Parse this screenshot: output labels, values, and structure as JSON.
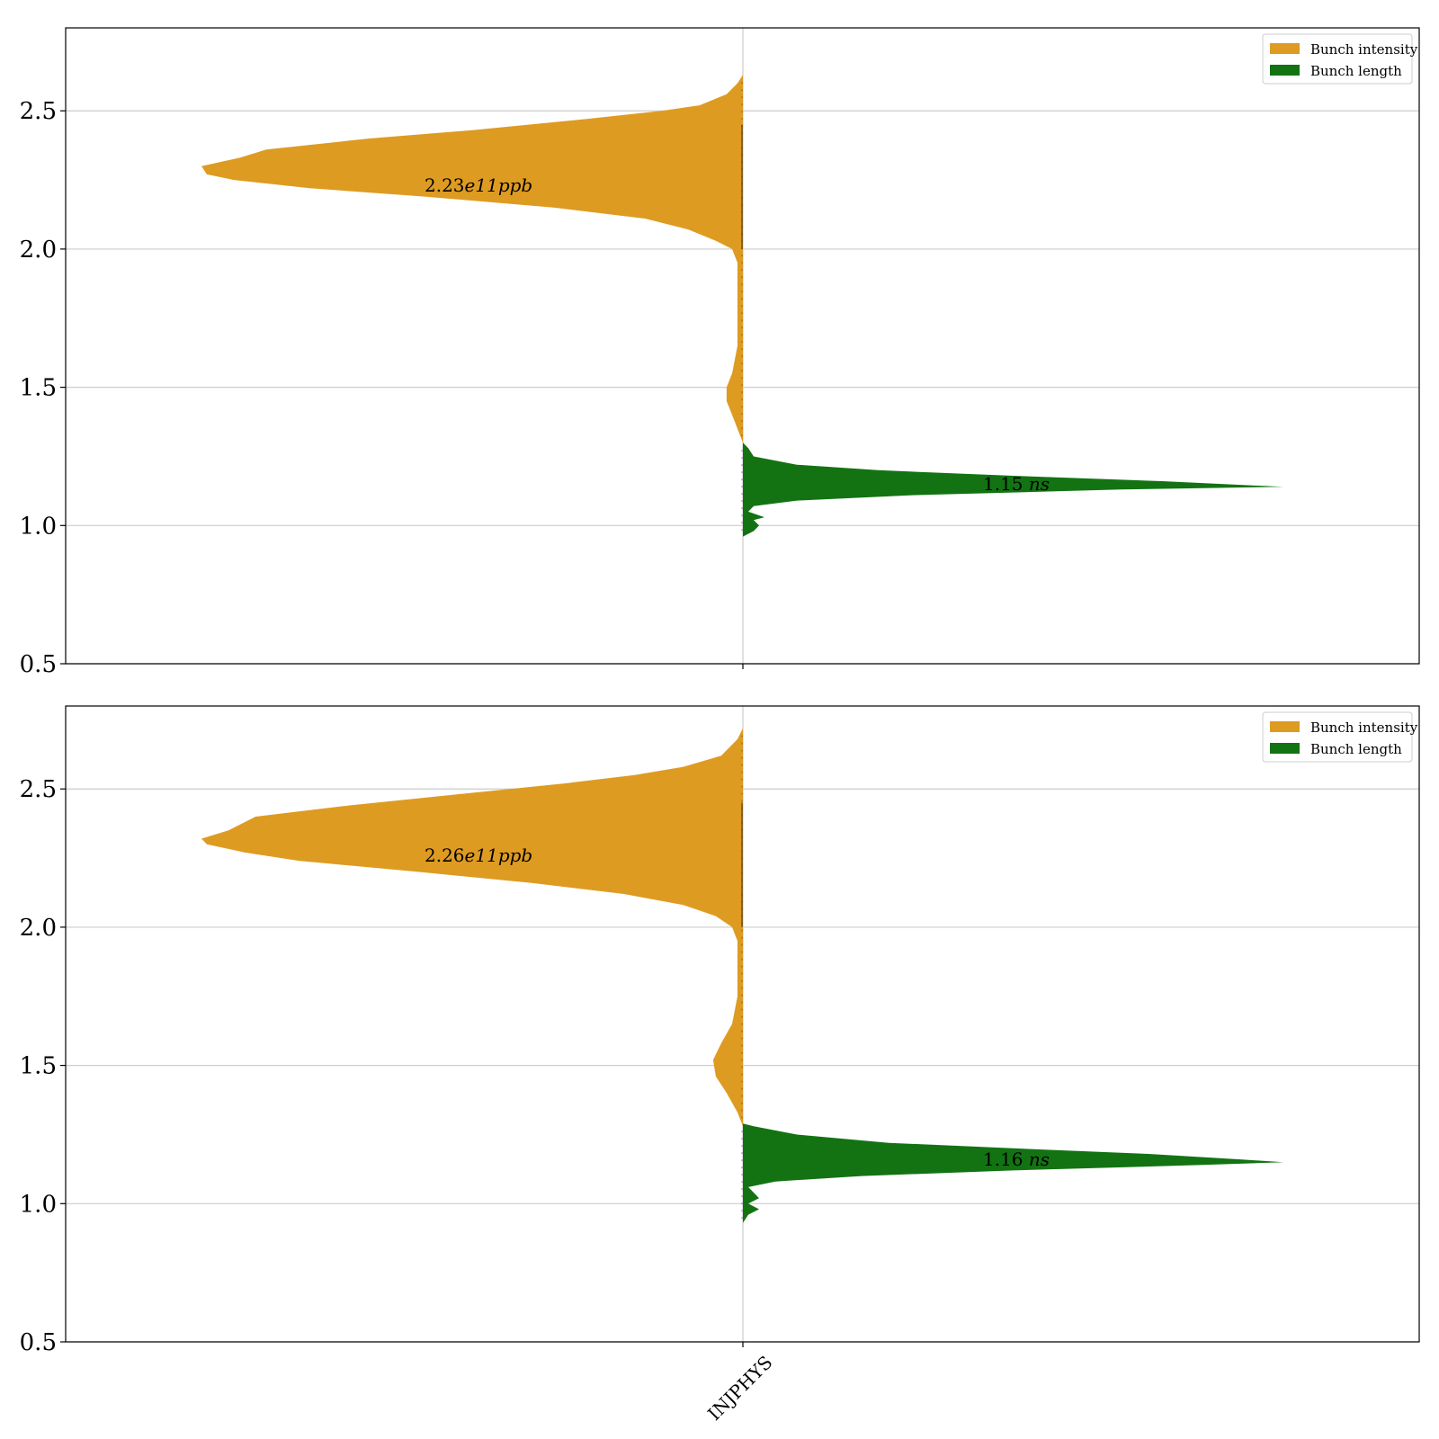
{
  "chart_data": [
    {
      "type": "violin",
      "ylim": [
        0.5,
        2.8
      ],
      "yticks": [
        0.5,
        1.0,
        1.5,
        2.0,
        2.5
      ],
      "grid": "horizontal",
      "legend_position": "top-right",
      "categories": [
        "INJPHYS"
      ],
      "series": [
        {
          "name": "Bunch intensity",
          "color": "#de9b22",
          "side": "left",
          "annotation_number": "2.23",
          "annotation_unit": "e11ppb",
          "annotation_y": 2.23,
          "density": [
            [
              2.63,
              0.0
            ],
            [
              2.6,
              0.01
            ],
            [
              2.56,
              0.03
            ],
            [
              2.52,
              0.08
            ],
            [
              2.5,
              0.15
            ],
            [
              2.47,
              0.29
            ],
            [
              2.43,
              0.5
            ],
            [
              2.4,
              0.69
            ],
            [
              2.36,
              0.88
            ],
            [
              2.33,
              0.93
            ],
            [
              2.3,
              1.0
            ],
            [
              2.27,
              0.99
            ],
            [
              2.25,
              0.94
            ],
            [
              2.22,
              0.8
            ],
            [
              2.19,
              0.59
            ],
            [
              2.15,
              0.35
            ],
            [
              2.11,
              0.18
            ],
            [
              2.07,
              0.1
            ],
            [
              2.03,
              0.05
            ],
            [
              2.0,
              0.02
            ],
            [
              1.95,
              0.01
            ],
            [
              1.85,
              0.01
            ],
            [
              1.75,
              0.01
            ],
            [
              1.65,
              0.01
            ],
            [
              1.55,
              0.02
            ],
            [
              1.5,
              0.03
            ],
            [
              1.45,
              0.03
            ],
            [
              1.4,
              0.02
            ],
            [
              1.35,
              0.01
            ],
            [
              1.3,
              0.0
            ]
          ]
        },
        {
          "name": "Bunch length",
          "color": "#137313",
          "side": "right",
          "annotation_number": "1.15",
          "annotation_unit": "ns",
          "annotation_y": 1.15,
          "density": [
            [
              1.3,
              0.0
            ],
            [
              1.28,
              0.01
            ],
            [
              1.25,
              0.02
            ],
            [
              1.22,
              0.1
            ],
            [
              1.2,
              0.25
            ],
            [
              1.18,
              0.5
            ],
            [
              1.16,
              0.78
            ],
            [
              1.14,
              1.0
            ],
            [
              1.13,
              0.7
            ],
            [
              1.11,
              0.32
            ],
            [
              1.09,
              0.1
            ],
            [
              1.07,
              0.02
            ],
            [
              1.05,
              0.01
            ],
            [
              1.03,
              0.04
            ],
            [
              1.02,
              0.02
            ],
            [
              1.0,
              0.03
            ],
            [
              0.98,
              0.02
            ],
            [
              0.96,
              0.0
            ]
          ]
        }
      ]
    },
    {
      "type": "violin",
      "ylim": [
        0.5,
        2.8
      ],
      "yticks": [
        0.5,
        1.0,
        1.5,
        2.0,
        2.5
      ],
      "grid": "horizontal",
      "legend_position": "top-right",
      "categories": [
        "INJPHYS"
      ],
      "xlabel_ticks": [
        "INJPHYS"
      ],
      "series": [
        {
          "name": "Bunch intensity",
          "color": "#de9b22",
          "side": "left",
          "annotation_number": "2.26",
          "annotation_unit": "e11ppb",
          "annotation_y": 2.26,
          "density": [
            [
              2.72,
              0.0
            ],
            [
              2.68,
              0.01
            ],
            [
              2.62,
              0.04
            ],
            [
              2.58,
              0.11
            ],
            [
              2.55,
              0.2
            ],
            [
              2.52,
              0.33
            ],
            [
              2.48,
              0.53
            ],
            [
              2.44,
              0.73
            ],
            [
              2.4,
              0.9
            ],
            [
              2.35,
              0.95
            ],
            [
              2.32,
              1.0
            ],
            [
              2.3,
              0.99
            ],
            [
              2.27,
              0.92
            ],
            [
              2.24,
              0.82
            ],
            [
              2.2,
              0.6
            ],
            [
              2.16,
              0.39
            ],
            [
              2.12,
              0.22
            ],
            [
              2.08,
              0.11
            ],
            [
              2.04,
              0.05
            ],
            [
              2.0,
              0.02
            ],
            [
              1.95,
              0.01
            ],
            [
              1.85,
              0.01
            ],
            [
              1.75,
              0.01
            ],
            [
              1.65,
              0.02
            ],
            [
              1.58,
              0.04
            ],
            [
              1.52,
              0.055
            ],
            [
              1.46,
              0.05
            ],
            [
              1.4,
              0.03
            ],
            [
              1.33,
              0.01
            ],
            [
              1.28,
              0.0
            ]
          ]
        },
        {
          "name": "Bunch length",
          "color": "#137313",
          "side": "right",
          "annotation_number": "1.16",
          "annotation_unit": "ns",
          "annotation_y": 1.16,
          "density": [
            [
              1.29,
              0.0
            ],
            [
              1.28,
              0.02
            ],
            [
              1.25,
              0.1
            ],
            [
              1.22,
              0.27
            ],
            [
              1.2,
              0.5
            ],
            [
              1.18,
              0.75
            ],
            [
              1.16,
              0.92
            ],
            [
              1.15,
              1.0
            ],
            [
              1.14,
              0.85
            ],
            [
              1.12,
              0.5
            ],
            [
              1.1,
              0.22
            ],
            [
              1.08,
              0.06
            ],
            [
              1.06,
              0.01
            ],
            [
              1.04,
              0.02
            ],
            [
              1.02,
              0.03
            ],
            [
              1.0,
              0.01
            ],
            [
              0.98,
              0.03
            ],
            [
              0.96,
              0.01
            ],
            [
              0.93,
              0.0
            ]
          ]
        }
      ]
    }
  ]
}
